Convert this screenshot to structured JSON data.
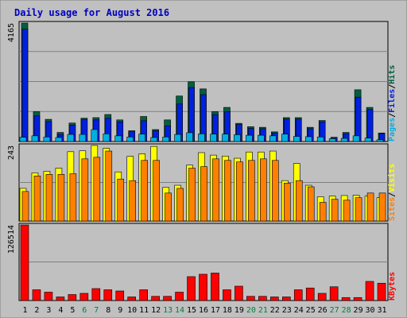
{
  "chart_data": {
    "type": "bar",
    "title": "Daily usage for August 2016",
    "categories": [
      "1",
      "2",
      "3",
      "4",
      "5",
      "6",
      "7",
      "8",
      "9",
      "10",
      "11",
      "12",
      "13",
      "14",
      "15",
      "16",
      "17",
      "18",
      "19",
      "20",
      "21",
      "22",
      "23",
      "24",
      "25",
      "26",
      "27",
      "28",
      "29",
      "30",
      "31"
    ],
    "weekend_days": [
      "6",
      "7",
      "13",
      "14",
      "20",
      "21",
      "27",
      "28"
    ],
    "panels": [
      {
        "id": "top",
        "max_label": "4165",
        "ylim": [
          0,
          4165
        ],
        "right_label_parts": [
          "Pages",
          "/",
          "Files",
          "/",
          "Hits"
        ],
        "series": [
          {
            "name": "Hits",
            "color": "#006040",
            "values": [
              4165,
              1050,
              780,
              320,
              650,
              820,
              840,
              950,
              760,
              380,
              880,
              420,
              760,
              1600,
              2100,
              1850,
              1050,
              1200,
              640,
              520,
              500,
              340,
              840,
              840,
              500,
              740,
              150,
              320,
              1820,
              1200,
              300
            ]
          },
          {
            "name": "Files",
            "color": "#0020e0",
            "values": [
              3950,
              900,
              700,
              250,
              580,
              780,
              760,
              820,
              690,
              340,
              730,
              380,
              550,
              1320,
              1900,
              1650,
              950,
              1050,
              600,
              460,
              450,
              300,
              790,
              790,
              450,
              690,
              120,
              270,
              1560,
              1120,
              280
            ]
          },
          {
            "name": "Pages",
            "color": "#00b0e0",
            "values": [
              150,
              200,
              160,
              140,
              250,
              250,
              420,
              270,
              200,
              160,
              260,
              140,
              160,
              250,
              310,
              270,
              260,
              260,
              240,
              220,
              220,
              200,
              260,
              180,
              170,
              160,
              100,
              110,
              200,
              120,
              60
            ]
          }
        ]
      },
      {
        "id": "middle",
        "max_label": "243",
        "ylim": [
          0,
          243
        ],
        "right_label_parts": [
          "Sites",
          "/",
          "Visits"
        ],
        "series": [
          {
            "name": "Visits",
            "color": "#ffff00",
            "values": [
              105,
              155,
              160,
              170,
              223,
              226,
              243,
              234,
              158,
              208,
              216,
              240,
              108,
              115,
              180,
              220,
              212,
              209,
              202,
              222,
              222,
              225,
              130,
              185,
              115,
              78,
              80,
              82,
              83,
              80,
              75
            ]
          },
          {
            "name": "Sites",
            "color": "#ff8000",
            "values": [
              95,
              145,
              150,
              150,
              152,
              200,
              205,
              225,
              135,
              130,
              195,
              195,
              90,
              105,
              170,
              175,
              200,
              195,
              190,
              195,
              200,
              195,
              122,
              130,
              110,
              60,
              70,
              67,
              75,
              90,
              90
            ]
          }
        ]
      },
      {
        "id": "bottom",
        "max_label": "126514",
        "ylim": [
          0,
          126514
        ],
        "right_label_parts": [
          "KBytes"
        ],
        "series": [
          {
            "name": "KBytes",
            "color": "#ff0000",
            "values": [
              126514,
              18000,
              14000,
              6000,
              10000,
              12000,
              20000,
              18000,
              16000,
              6000,
              18000,
              7000,
              7000,
              14000,
              40000,
              44000,
              46000,
              18000,
              24000,
              7000,
              7000,
              6000,
              6000,
              18000,
              21000,
              12000,
              23000,
              5000,
              5000,
              32000,
              29000
            ]
          }
        ]
      }
    ]
  }
}
